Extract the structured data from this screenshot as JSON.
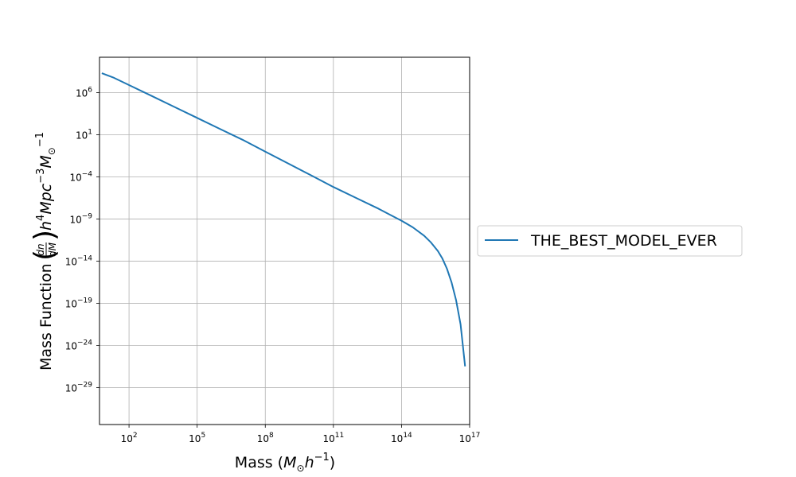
{
  "chart_data": {
    "type": "line",
    "x_scale": "log",
    "y_scale": "log",
    "grid": true,
    "legend_position": "right-outside",
    "xlim_exp": [
      0.7,
      17.0
    ],
    "ylim_exp": [
      -33.4,
      10.2
    ],
    "x_ticks": [
      {
        "exp": 2,
        "base": "10",
        "sup": "2"
      },
      {
        "exp": 5,
        "base": "10",
        "sup": "5"
      },
      {
        "exp": 8,
        "base": "10",
        "sup": "8"
      },
      {
        "exp": 11,
        "base": "10",
        "sup": "11"
      },
      {
        "exp": 14,
        "base": "10",
        "sup": "14"
      },
      {
        "exp": 17,
        "base": "10",
        "sup": "17"
      }
    ],
    "y_ticks": [
      {
        "exp": 6,
        "base": "10",
        "sup": "6"
      },
      {
        "exp": 1,
        "base": "10",
        "sup": "1"
      },
      {
        "exp": -4,
        "base": "10",
        "sup": "−4"
      },
      {
        "exp": -9,
        "base": "10",
        "sup": "−9"
      },
      {
        "exp": -14,
        "base": "10",
        "sup": "−14"
      },
      {
        "exp": -19,
        "base": "10",
        "sup": "−19"
      },
      {
        "exp": -24,
        "base": "10",
        "sup": "−24"
      },
      {
        "exp": -29,
        "base": "10",
        "sup": "−29"
      }
    ],
    "series": [
      {
        "name": "THE_BEST_MODEL_EVER",
        "color": "#1f77b4",
        "x_log10": [
          0.8,
          1.3,
          2,
          3,
          4,
          5,
          6,
          7,
          8,
          9,
          10,
          11,
          12,
          13,
          13.5,
          14,
          14.5,
          15,
          15.3,
          15.6,
          15.8,
          16.0,
          16.2,
          16.4,
          16.6,
          16.8
        ],
        "y_log10": [
          8.3,
          7.8,
          6.9,
          5.6,
          4.3,
          3.0,
          1.7,
          0.4,
          -1.0,
          -2.4,
          -3.8,
          -5.2,
          -6.5,
          -7.8,
          -8.5,
          -9.2,
          -10.0,
          -11.0,
          -11.8,
          -12.8,
          -13.7,
          -14.9,
          -16.5,
          -18.6,
          -21.5,
          -26.5
        ]
      }
    ],
    "xlabel": {
      "prefix": "Mass (",
      "m": "M",
      "sun": "⊙",
      "h": "h",
      "hsup": "−1",
      "suffix": ")"
    },
    "ylabel": {
      "prefix": "Mass Function ",
      "dn": "dn",
      "dM": "dM",
      "h": "h",
      "hsup": "4",
      "mpc": "Mpc",
      "mpcsup": "−3",
      "m": "M",
      "sun": "⊙",
      "msup": "−1"
    }
  }
}
